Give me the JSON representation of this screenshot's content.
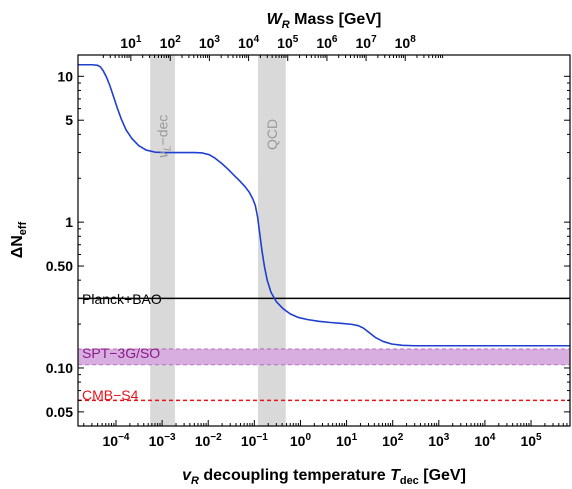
{
  "chart_data": {
    "type": "line",
    "x_scale": "log",
    "y_scale": "log",
    "xlim": [
      1.5e-05,
      700000.0
    ],
    "ylim": [
      0.04,
      14
    ],
    "xlabel": {
      "prefix": "v",
      "prefix_sub": "R",
      "middle": " decoupling temperature ",
      "var": "T",
      "var_sub": "dec",
      "suffix": " [GeV]"
    },
    "ylabel": {
      "main": "ΔN",
      "sub": "eff"
    },
    "top_axis_label": {
      "var": "W",
      "var_sub": "R",
      "suffix": " Mass [GeV]"
    },
    "x_ticks": [
      {
        "value": 0.0001,
        "base": "10",
        "exp": "−4"
      },
      {
        "value": 0.001,
        "base": "10",
        "exp": "−3"
      },
      {
        "value": 0.01,
        "base": "10",
        "exp": "−2"
      },
      {
        "value": 0.1,
        "base": "10",
        "exp": "−1"
      },
      {
        "value": 1,
        "base": "10",
        "exp": "0"
      },
      {
        "value": 10,
        "base": "10",
        "exp": "1"
      },
      {
        "value": 100,
        "base": "10",
        "exp": "2"
      },
      {
        "value": 1000,
        "base": "10",
        "exp": "3"
      },
      {
        "value": 10000,
        "base": "10",
        "exp": "4"
      },
      {
        "value": 100000,
        "base": "10",
        "exp": "5"
      }
    ],
    "top_ticks": [
      {
        "value": 0.00021,
        "base": "10",
        "exp": "1"
      },
      {
        "value": 0.0015,
        "base": "10",
        "exp": "2"
      },
      {
        "value": 0.0106,
        "base": "10",
        "exp": "3"
      },
      {
        "value": 0.075,
        "base": "10",
        "exp": "4"
      },
      {
        "value": 0.53,
        "base": "10",
        "exp": "5"
      },
      {
        "value": 3.75,
        "base": "10",
        "exp": "6"
      },
      {
        "value": 26.5,
        "base": "10",
        "exp": "7"
      },
      {
        "value": 187,
        "base": "10",
        "exp": "8"
      }
    ],
    "y_ticks": [
      {
        "value": 0.05,
        "label": "0.05"
      },
      {
        "value": 0.1,
        "label": "0.10"
      },
      {
        "value": 0.5,
        "label": "0.50"
      },
      {
        "value": 1,
        "label": "1"
      },
      {
        "value": 5,
        "label": "5"
      },
      {
        "value": 10,
        "label": "10"
      }
    ],
    "series": [
      {
        "color": "#1f3fcf",
        "x": [
          1.5e-05,
          3e-05,
          4e-05,
          4.6e-05,
          5.3e-05,
          6.2e-05,
          7.3e-05,
          8.8e-05,
          0.000106,
          0.00013,
          0.000165,
          0.00022,
          0.00031,
          0.00045,
          0.0007,
          0.0012,
          0.0025,
          0.005,
          0.0075,
          0.0105,
          0.014,
          0.019,
          0.026,
          0.035,
          0.048,
          0.063,
          0.078,
          0.092,
          0.105,
          0.118,
          0.13,
          0.145,
          0.165,
          0.19,
          0.23,
          0.3,
          0.42,
          0.6,
          0.9,
          1.4,
          2.5,
          4.5,
          8,
          13,
          18,
          23,
          30,
          42,
          62,
          95,
          160,
          300,
          700000
        ],
        "y": [
          12,
          12,
          11.9,
          11.6,
          10.9,
          9.9,
          8.7,
          7.3,
          6.1,
          5.1,
          4.3,
          3.75,
          3.35,
          3.12,
          3.02,
          3.0,
          3.0,
          3.0,
          2.98,
          2.9,
          2.75,
          2.55,
          2.33,
          2.12,
          1.92,
          1.75,
          1.6,
          1.45,
          1.3,
          1.08,
          0.85,
          0.65,
          0.5,
          0.4,
          0.33,
          0.285,
          0.255,
          0.235,
          0.222,
          0.215,
          0.209,
          0.205,
          0.202,
          0.199,
          0.195,
          0.188,
          0.176,
          0.162,
          0.152,
          0.146,
          0.143,
          0.142,
          0.142
        ]
      }
    ],
    "bands": [
      {
        "label": "ν_L−dec",
        "label_main": "ν",
        "label_sub": "L",
        "label_rest": "−dec",
        "x_min": 0.00055,
        "x_max": 0.0019,
        "color": "#d9d9d9"
      },
      {
        "label": "QCD",
        "x_min": 0.12,
        "x_max": 0.48,
        "color": "#d9d9d9"
      }
    ],
    "reference_lines": [
      {
        "label": "Planck+BAO",
        "y": 0.3,
        "color": "#000000",
        "style": "solid"
      },
      {
        "label": "SPT−3G/SO",
        "y": 0.12,
        "y_low": 0.105,
        "y_high": 0.135,
        "color": "#8b1a89",
        "fill": "#d8aee0",
        "style": "dashed"
      },
      {
        "label": "CMB−S4",
        "y": 0.06,
        "color": "#e6141b",
        "style": "dashed"
      }
    ]
  }
}
